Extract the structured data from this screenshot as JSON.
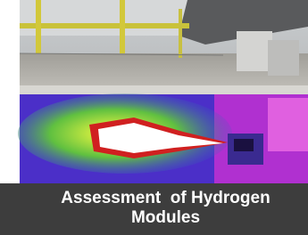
{
  "caption": "Assessment  of Hydrogen Modules"
}
